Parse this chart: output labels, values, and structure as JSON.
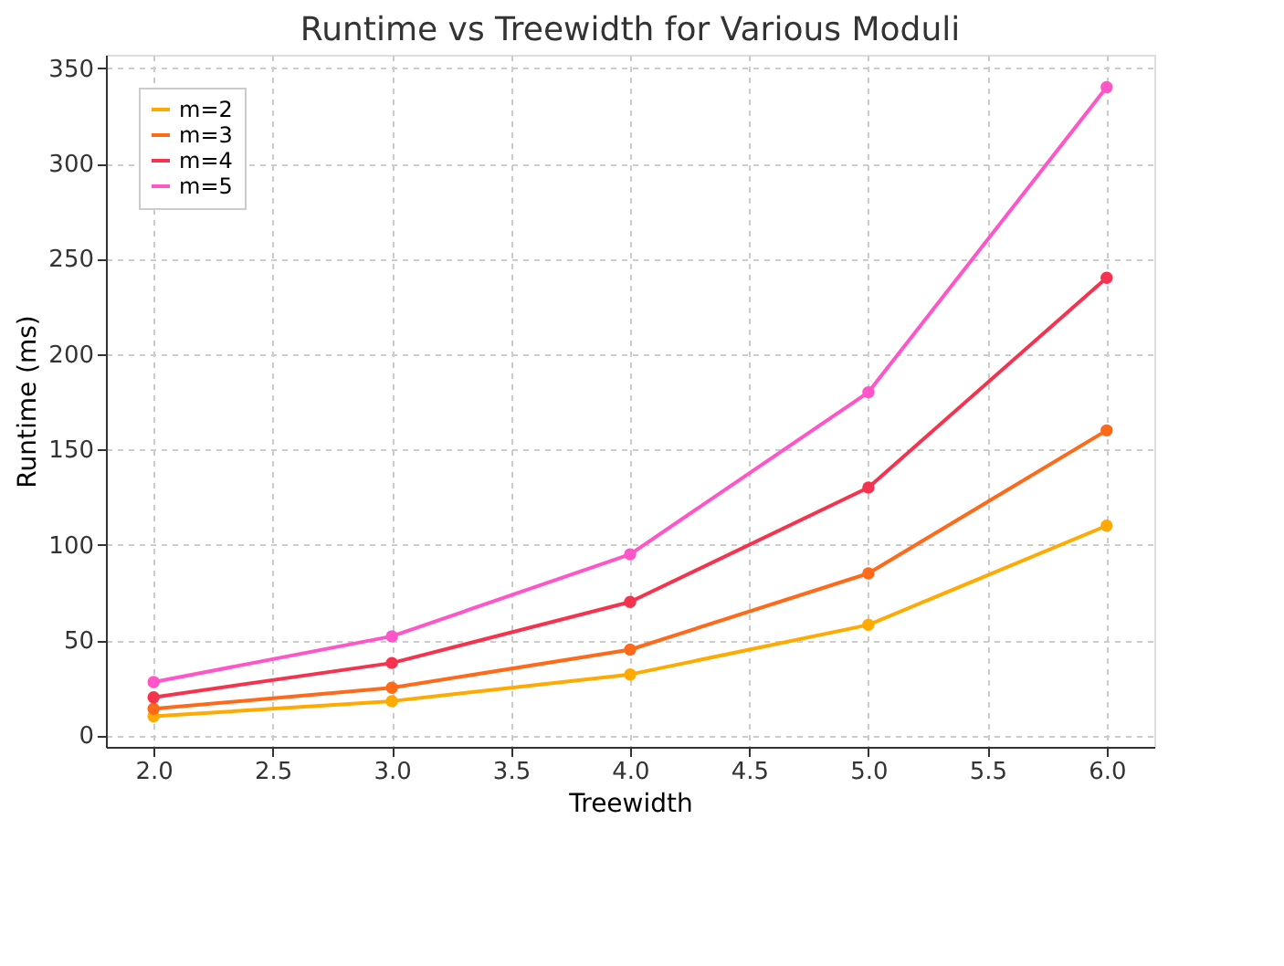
{
  "chart_data": {
    "type": "line",
    "title": "Runtime vs Treewidth for Various Moduli",
    "xlabel": "Treewidth",
    "ylabel": "Runtime (ms)",
    "x": [
      2.0,
      3.0,
      4.0,
      5.0,
      6.0
    ],
    "series": [
      {
        "name": "m=2",
        "color": "#ffaa00",
        "values": [
          10,
          18,
          32,
          58,
          110
        ]
      },
      {
        "name": "m=3",
        "color": "#ff6a1a",
        "values": [
          14,
          25,
          45,
          85,
          160
        ]
      },
      {
        "name": "m=4",
        "color": "#f5334f",
        "values": [
          20,
          38,
          70,
          130,
          240
        ]
      },
      {
        "name": "m=5",
        "color": "#ff55c8",
        "values": [
          28,
          52,
          95,
          180,
          340
        ]
      }
    ],
    "xlim": [
      1.8,
      6.2
    ],
    "xticks": [
      {
        "value": 2.0,
        "label": "2.0"
      },
      {
        "value": 2.5,
        "label": "2.5"
      },
      {
        "value": 3.0,
        "label": "3.0"
      },
      {
        "value": 3.5,
        "label": "3.5"
      },
      {
        "value": 4.0,
        "label": "4.0"
      },
      {
        "value": 4.5,
        "label": "4.5"
      },
      {
        "value": 5.0,
        "label": "5.0"
      },
      {
        "value": 5.5,
        "label": "5.5"
      },
      {
        "value": 6.0,
        "label": "6.0"
      }
    ],
    "ylim": [
      -6,
      357
    ],
    "yticks": [
      0,
      50,
      100,
      150,
      200,
      250,
      300,
      350
    ],
    "grid": true,
    "legend": "top left",
    "marker": "circle",
    "line_style": "solid"
  }
}
